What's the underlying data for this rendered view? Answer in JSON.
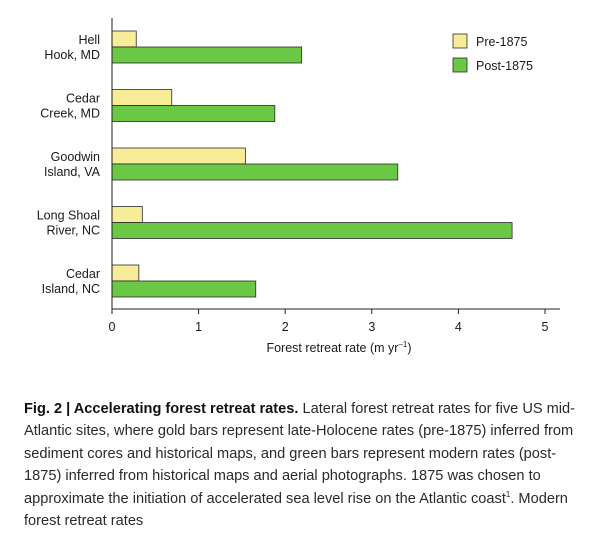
{
  "chart_data": {
    "type": "bar",
    "orientation": "horizontal",
    "categories": [
      [
        "Hell",
        "Hook, MD"
      ],
      [
        "Cedar",
        "Creek, MD"
      ],
      [
        "Goodwin",
        "Island, VA"
      ],
      [
        "Long Shoal",
        "River, NC"
      ],
      [
        "Cedar",
        "Island, NC"
      ]
    ],
    "series": [
      {
        "name": "Pre-1875",
        "color": "#f7ec98",
        "values": [
          0.28,
          0.69,
          1.54,
          0.35,
          0.31
        ]
      },
      {
        "name": "Post-1875",
        "color": "#6ac845",
        "values": [
          2.19,
          1.88,
          3.3,
          4.62,
          1.66
        ]
      }
    ],
    "xlim": [
      0,
      5
    ],
    "xticks": [
      0,
      1,
      2,
      3,
      4,
      5
    ],
    "xlabel_main": "Forest retreat rate (m yr",
    "xlabel_sup": "–1",
    "xlabel_end": ")",
    "legend_position": "top-right",
    "grid": false
  },
  "caption": {
    "lead": "Fig. 2 | Accelerating forest retreat rates.",
    "body": " Lateral forest retreat rates for five US mid-Atlantic sites, where gold bars represent late-Holocene rates (pre-1875) inferred from sediment cores and historical maps, and green bars represent modern rates (post-1875) inferred from historical maps and aerial photographs. 1875 was chosen to approximate the initiation of accelerated sea level rise on the Atlantic coast",
    "ref": "1",
    "tail": ". Modern forest retreat rates"
  }
}
